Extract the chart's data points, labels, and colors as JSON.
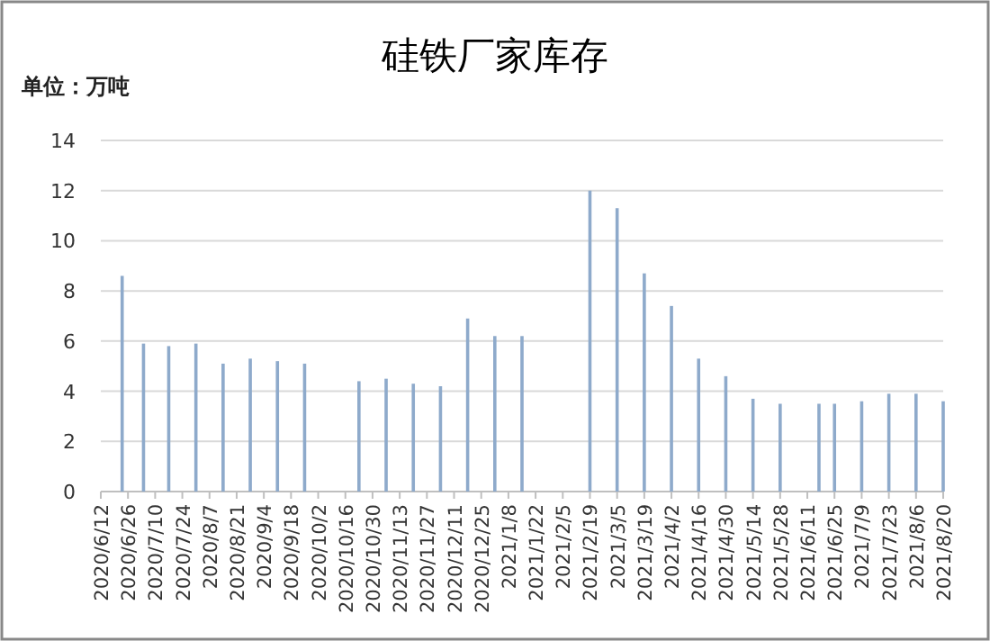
{
  "chart_data": {
    "type": "bar",
    "title": "硅铁厂家库存",
    "ylabel": "单位：万吨",
    "color": "#8eaacb",
    "grid": "y",
    "x": [
      "2020-06-23",
      "2020-07-04",
      "2020-07-17",
      "2020-07-31",
      "2020-08-14",
      "2020-08-28",
      "2020-09-11",
      "2020-09-25",
      "2020-10-23",
      "2020-11-06",
      "2020-11-20",
      "2020-12-04",
      "2020-12-18",
      "2021-01-01",
      "2021-01-15",
      "2021-02-19",
      "2021-03-05",
      "2021-03-19",
      "2021-04-02",
      "2021-04-16",
      "2021-04-30",
      "2021-05-14",
      "2021-05-28",
      "2021-06-17",
      "2021-06-25",
      "2021-07-09",
      "2021-07-23",
      "2021-08-06",
      "2021-08-20"
    ],
    "values": [
      8.6,
      5.9,
      5.8,
      5.9,
      5.1,
      5.3,
      5.2,
      5.1,
      4.4,
      4.5,
      4.3,
      4.2,
      6.9,
      6.2,
      6.2,
      12.0,
      11.3,
      8.7,
      7.4,
      5.3,
      4.6,
      3.7,
      3.5,
      3.5,
      3.5,
      3.6,
      3.9,
      3.9,
      3.6
    ],
    "xlim": [
      "2020-06-12",
      "2021-08-20"
    ],
    "xticks": [
      {
        "value": "2020-06-12",
        "label": "2020/6/12"
      },
      {
        "value": "2020-06-26",
        "label": "2020/6/26"
      },
      {
        "value": "2020-07-10",
        "label": "2020/7/10"
      },
      {
        "value": "2020-07-24",
        "label": "2020/7/24"
      },
      {
        "value": "2020-08-07",
        "label": "2020/8/7"
      },
      {
        "value": "2020-08-21",
        "label": "2020/8/21"
      },
      {
        "value": "2020-09-04",
        "label": "2020/9/4"
      },
      {
        "value": "2020-09-18",
        "label": "2020/9/18"
      },
      {
        "value": "2020-10-02",
        "label": "2020/10/2"
      },
      {
        "value": "2020-10-16",
        "label": "2020/10/16"
      },
      {
        "value": "2020-10-30",
        "label": "2020/10/30"
      },
      {
        "value": "2020-11-13",
        "label": "2020/11/13"
      },
      {
        "value": "2020-11-27",
        "label": "2020/11/27"
      },
      {
        "value": "2020-12-11",
        "label": "2020/12/11"
      },
      {
        "value": "2020-12-25",
        "label": "2020/12/25"
      },
      {
        "value": "2021-01-08",
        "label": "2021/1/8"
      },
      {
        "value": "2021-01-22",
        "label": "2021/1/22"
      },
      {
        "value": "2021-02-05",
        "label": "2021/2/5"
      },
      {
        "value": "2021-02-19",
        "label": "2021/2/19"
      },
      {
        "value": "2021-03-05",
        "label": "2021/3/5"
      },
      {
        "value": "2021-03-19",
        "label": "2021/3/19"
      },
      {
        "value": "2021-04-02",
        "label": "2021/4/2"
      },
      {
        "value": "2021-04-16",
        "label": "2021/4/16"
      },
      {
        "value": "2021-04-30",
        "label": "2021/4/30"
      },
      {
        "value": "2021-05-14",
        "label": "2021/5/14"
      },
      {
        "value": "2021-05-28",
        "label": "2021/5/28"
      },
      {
        "value": "2021-06-11",
        "label": "2021/6/11"
      },
      {
        "value": "2021-06-25",
        "label": "2021/6/25"
      },
      {
        "value": "2021-07-09",
        "label": "2021/7/9"
      },
      {
        "value": "2021-07-23",
        "label": "2021/7/23"
      },
      {
        "value": "2021-08-06",
        "label": "2021/8/6"
      },
      {
        "value": "2021-08-20",
        "label": "2021/8/20"
      }
    ],
    "ylim": [
      0,
      14
    ],
    "yticks": [
      0,
      2,
      4,
      6,
      8,
      10,
      12,
      14
    ]
  }
}
